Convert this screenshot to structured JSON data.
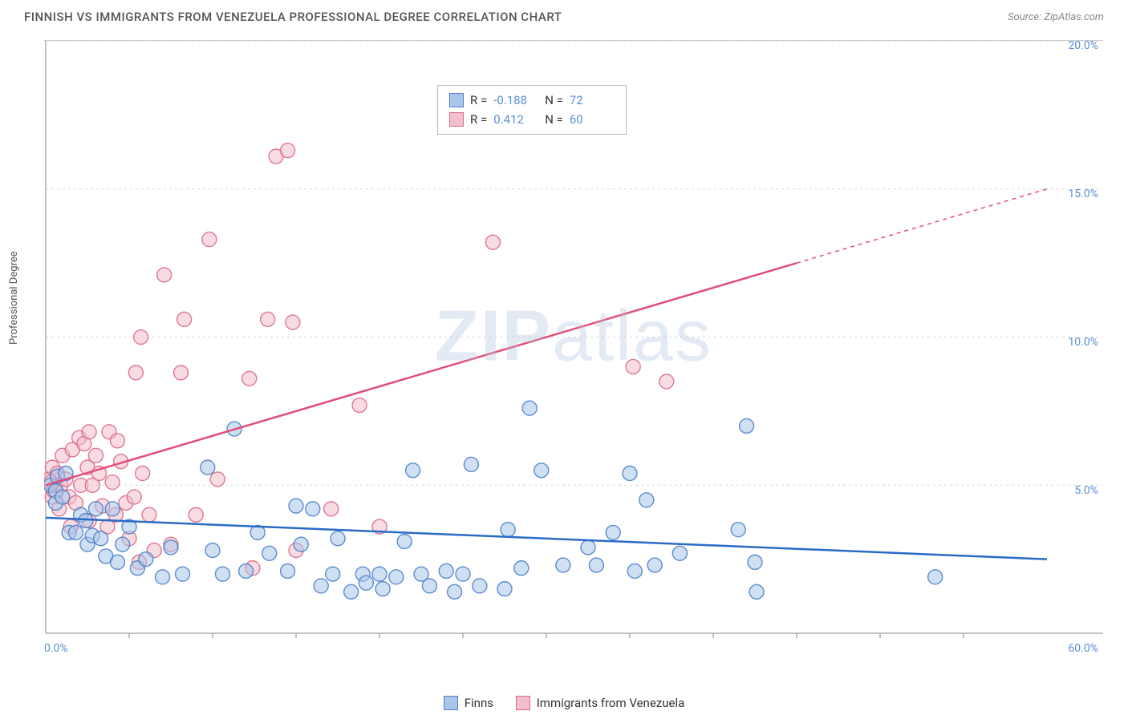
{
  "title": "FINNISH VS IMMIGRANTS FROM VENEZUELA PROFESSIONAL DEGREE CORRELATION CHART",
  "source": "Source: ZipAtlas.com",
  "y_axis_label": "Professional Degree",
  "watermark": {
    "bold": "ZIP",
    "rest": "atlas"
  },
  "chart": {
    "type": "scatter",
    "xlim": [
      0,
      60
    ],
    "ylim": [
      0,
      20
    ],
    "x_ticks_pct": [
      0,
      60
    ],
    "y_ticks_pct": [
      5,
      10,
      15,
      20
    ],
    "x_minor_ticks": [
      5,
      10,
      15,
      20,
      25,
      30,
      35,
      40,
      45,
      50,
      55
    ],
    "grid_color": "#d8d8d8",
    "axis_color": "#888888",
    "background_color": "#ffffff",
    "marker_radius": 9,
    "marker_opacity": 0.55,
    "marker_stroke_width": 1.4,
    "series": [
      {
        "key": "finns",
        "label": "Finns",
        "color_fill": "#a9c6ea",
        "color_stroke": "#4c7fc9",
        "line_color": "#2a6bc7",
        "R": "-0.188",
        "N": "72",
        "trend": {
          "x1": 0,
          "y1": 3.9,
          "x2": 60,
          "y2": 2.5,
          "dashed_from": null
        },
        "points": [
          [
            0.3,
            5.0
          ],
          [
            0.6,
            4.8
          ],
          [
            0.6,
            4.4
          ],
          [
            0.7,
            5.3
          ],
          [
            1.0,
            4.6
          ],
          [
            1.2,
            5.4
          ],
          [
            1.4,
            3.4
          ],
          [
            1.8,
            3.4
          ],
          [
            2.1,
            4.0
          ],
          [
            2.4,
            3.8
          ],
          [
            2.5,
            3.0
          ],
          [
            2.8,
            3.3
          ],
          [
            3.0,
            4.2
          ],
          [
            3.3,
            3.2
          ],
          [
            3.6,
            2.6
          ],
          [
            4.0,
            4.2
          ],
          [
            4.3,
            2.4
          ],
          [
            4.6,
            3.0
          ],
          [
            5.0,
            3.6
          ],
          [
            5.5,
            2.2
          ],
          [
            6.0,
            2.5
          ],
          [
            7.0,
            1.9
          ],
          [
            7.5,
            2.9
          ],
          [
            8.2,
            2.0
          ],
          [
            9.7,
            5.6
          ],
          [
            10.0,
            2.8
          ],
          [
            10.6,
            2.0
          ],
          [
            11.3,
            6.9
          ],
          [
            12.0,
            2.1
          ],
          [
            12.7,
            3.4
          ],
          [
            13.4,
            2.7
          ],
          [
            14.5,
            2.1
          ],
          [
            15.0,
            4.3
          ],
          [
            15.3,
            3.0
          ],
          [
            16.0,
            4.2
          ],
          [
            16.5,
            1.6
          ],
          [
            17.2,
            2.0
          ],
          [
            17.5,
            3.2
          ],
          [
            18.3,
            1.4
          ],
          [
            19.0,
            2.0
          ],
          [
            19.2,
            1.7
          ],
          [
            20.0,
            2.0
          ],
          [
            20.2,
            1.5
          ],
          [
            21.0,
            1.9
          ],
          [
            21.5,
            3.1
          ],
          [
            22.0,
            5.5
          ],
          [
            22.5,
            2.0
          ],
          [
            23.0,
            1.6
          ],
          [
            24.0,
            2.1
          ],
          [
            24.5,
            1.4
          ],
          [
            25.0,
            2.0
          ],
          [
            25.5,
            5.7
          ],
          [
            26.0,
            1.6
          ],
          [
            27.5,
            1.5
          ],
          [
            27.7,
            3.5
          ],
          [
            28.5,
            2.2
          ],
          [
            29.0,
            7.6
          ],
          [
            29.7,
            5.5
          ],
          [
            31.0,
            2.3
          ],
          [
            32.5,
            2.9
          ],
          [
            33.0,
            2.3
          ],
          [
            34.0,
            3.4
          ],
          [
            35.0,
            5.4
          ],
          [
            35.3,
            2.1
          ],
          [
            36.0,
            4.5
          ],
          [
            36.5,
            2.3
          ],
          [
            38.0,
            2.7
          ],
          [
            41.5,
            3.5
          ],
          [
            42.0,
            7.0
          ],
          [
            42.5,
            2.4
          ],
          [
            42.6,
            1.4
          ],
          [
            53.3,
            1.9
          ]
        ]
      },
      {
        "key": "venezuela",
        "label": "Immigrants from Venezuela",
        "color_fill": "#f2bfca",
        "color_stroke": "#d96a8a",
        "line_color": "#e24d78",
        "R": "0.412",
        "N": "60",
        "trend": {
          "x1": 0,
          "y1": 5.0,
          "x2": 60,
          "y2": 15.0,
          "dashed_from": 45
        },
        "points": [
          [
            0.2,
            5.2
          ],
          [
            0.4,
            5.6
          ],
          [
            0.4,
            4.6
          ],
          [
            0.5,
            4.8
          ],
          [
            0.6,
            5.0
          ],
          [
            0.7,
            5.4
          ],
          [
            0.8,
            4.2
          ],
          [
            0.9,
            5.0
          ],
          [
            1.0,
            6.0
          ],
          [
            1.2,
            5.2
          ],
          [
            1.4,
            4.6
          ],
          [
            1.6,
            6.2
          ],
          [
            1.8,
            4.4
          ],
          [
            2.0,
            6.6
          ],
          [
            2.1,
            5.0
          ],
          [
            2.3,
            6.4
          ],
          [
            2.5,
            5.6
          ],
          [
            2.6,
            3.8
          ],
          [
            2.8,
            5.0
          ],
          [
            3.0,
            6.0
          ],
          [
            3.2,
            5.4
          ],
          [
            3.4,
            4.3
          ],
          [
            3.7,
            3.6
          ],
          [
            4.0,
            5.1
          ],
          [
            4.2,
            4.0
          ],
          [
            4.5,
            5.8
          ],
          [
            4.8,
            4.4
          ],
          [
            5.0,
            3.2
          ],
          [
            5.3,
            4.6
          ],
          [
            5.4,
            8.8
          ],
          [
            5.6,
            2.4
          ],
          [
            5.7,
            10.0
          ],
          [
            5.8,
            5.4
          ],
          [
            6.2,
            4.0
          ],
          [
            6.5,
            2.8
          ],
          [
            7.1,
            12.1
          ],
          [
            7.5,
            3.0
          ],
          [
            8.1,
            8.8
          ],
          [
            8.3,
            10.6
          ],
          [
            9.0,
            4.0
          ],
          [
            9.8,
            13.3
          ],
          [
            10.3,
            5.2
          ],
          [
            12.2,
            8.6
          ],
          [
            12.4,
            2.2
          ],
          [
            13.3,
            10.6
          ],
          [
            13.8,
            16.1
          ],
          [
            14.5,
            16.3
          ],
          [
            14.8,
            10.5
          ],
          [
            15.0,
            2.8
          ],
          [
            17.1,
            4.2
          ],
          [
            18.8,
            7.7
          ],
          [
            20.0,
            3.6
          ],
          [
            26.8,
            13.2
          ],
          [
            35.2,
            9.0
          ],
          [
            37.2,
            8.5
          ],
          [
            2.6,
            6.8
          ],
          [
            3.8,
            6.8
          ],
          [
            4.3,
            6.5
          ],
          [
            1.5,
            3.6
          ],
          [
            0.3,
            5.1
          ]
        ]
      }
    ]
  },
  "bottom_legend": [
    {
      "label": "Finns",
      "fill": "#a9c6ea",
      "stroke": "#4c7fc9"
    },
    {
      "label": "Immigrants from Venezuela",
      "fill": "#f2bfca",
      "stroke": "#d96a8a"
    }
  ]
}
